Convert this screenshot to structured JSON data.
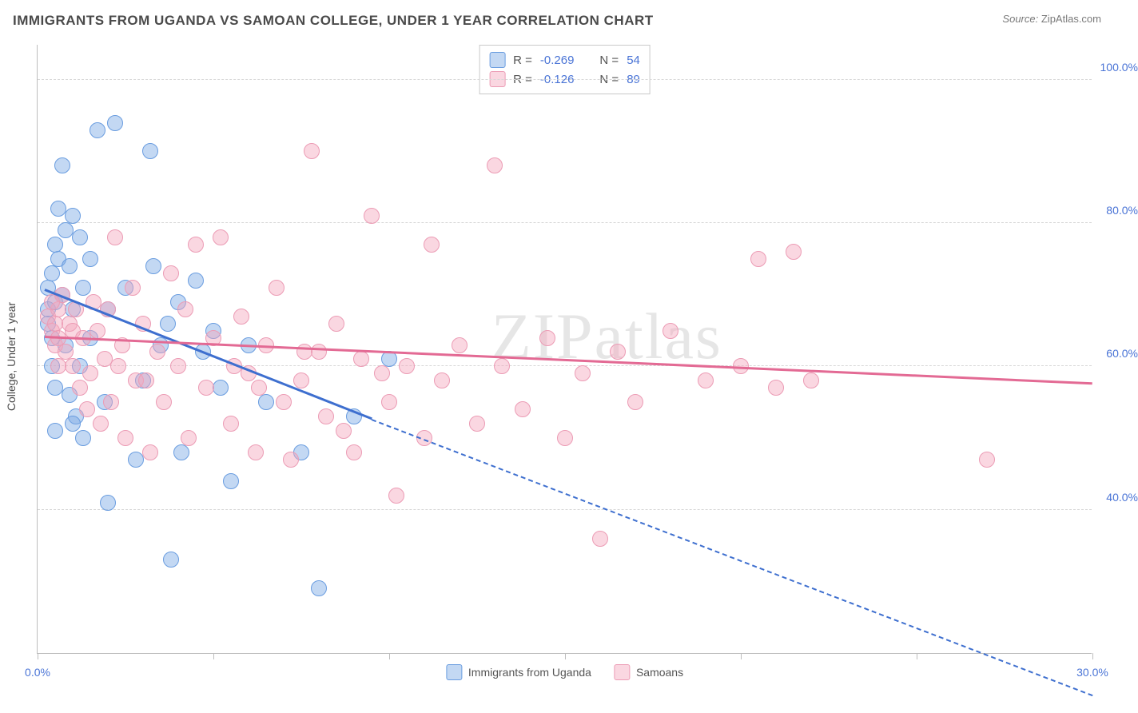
{
  "title": "IMMIGRANTS FROM UGANDA VS SAMOAN COLLEGE, UNDER 1 YEAR CORRELATION CHART",
  "source_label": "Source:",
  "source_value": "ZipAtlas.com",
  "y_axis_label": "College, Under 1 year",
  "watermark": "ZIPatlas",
  "chart": {
    "type": "scatter",
    "xlim": [
      0,
      30
    ],
    "ylim": [
      20,
      105
    ],
    "x_ticks": [
      0,
      5,
      10,
      15,
      20,
      25,
      30
    ],
    "x_tick_labels": [
      "0.0%",
      "",
      "",
      "",
      "",
      "",
      "30.0%"
    ],
    "y_ticks": [
      40,
      60,
      80,
      100
    ],
    "y_tick_labels": [
      "40.0%",
      "60.0%",
      "80.0%",
      "100.0%"
    ],
    "background_color": "#ffffff",
    "grid_color": "#d7d7d7",
    "point_radius": 10,
    "series": [
      {
        "name": "Immigrants from Uganda",
        "fill": "rgba(122,168,228,0.45)",
        "stroke": "#6a9de0",
        "trend_color": "#3e6fcf",
        "R": "-0.269",
        "N": "54",
        "trend": {
          "x1": 0.2,
          "y1": 70.5,
          "x2": 9.5,
          "y2": 52.5,
          "dash_to_x": 30,
          "dash_to_y": 14
        },
        "points": [
          [
            0.3,
            71
          ],
          [
            0.3,
            68
          ],
          [
            0.3,
            66
          ],
          [
            0.4,
            73
          ],
          [
            0.4,
            64
          ],
          [
            0.4,
            60
          ],
          [
            0.5,
            77
          ],
          [
            0.5,
            69
          ],
          [
            0.5,
            57
          ],
          [
            0.6,
            82
          ],
          [
            0.6,
            75
          ],
          [
            0.7,
            88
          ],
          [
            0.7,
            70
          ],
          [
            0.8,
            79
          ],
          [
            0.8,
            63
          ],
          [
            0.9,
            74
          ],
          [
            0.9,
            56
          ],
          [
            1.0,
            81
          ],
          [
            1.0,
            68
          ],
          [
            1.1,
            53
          ],
          [
            1.2,
            78
          ],
          [
            1.2,
            60
          ],
          [
            1.3,
            71
          ],
          [
            1.3,
            50
          ],
          [
            1.5,
            64
          ],
          [
            1.5,
            75
          ],
          [
            1.7,
            93
          ],
          [
            1.9,
            55
          ],
          [
            2.0,
            68
          ],
          [
            2.2,
            94
          ],
          [
            2.5,
            71
          ],
          [
            2.8,
            47
          ],
          [
            3.0,
            58
          ],
          [
            3.2,
            90
          ],
          [
            3.3,
            74
          ],
          [
            3.5,
            63
          ],
          [
            3.7,
            66
          ],
          [
            3.8,
            33
          ],
          [
            4.0,
            69
          ],
          [
            4.1,
            48
          ],
          [
            4.5,
            72
          ],
          [
            4.7,
            62
          ],
          [
            5.0,
            65
          ],
          [
            5.2,
            57
          ],
          [
            5.5,
            44
          ],
          [
            6.0,
            63
          ],
          [
            6.5,
            55
          ],
          [
            7.5,
            48
          ],
          [
            8.0,
            29
          ],
          [
            9.0,
            53
          ],
          [
            10.0,
            61
          ],
          [
            0.5,
            51
          ],
          [
            1.0,
            52
          ],
          [
            2.0,
            41
          ]
        ]
      },
      {
        "name": "Samoans",
        "fill": "rgba(244,166,188,0.45)",
        "stroke": "#ec9cb5",
        "trend_color": "#e36a94",
        "R": "-0.126",
        "N": "89",
        "trend": {
          "x1": 0.2,
          "y1": 64,
          "x2": 30,
          "y2": 57.5
        },
        "points": [
          [
            0.3,
            67
          ],
          [
            0.4,
            65
          ],
          [
            0.5,
            66
          ],
          [
            0.5,
            63
          ],
          [
            0.6,
            68
          ],
          [
            0.6,
            64
          ],
          [
            0.7,
            70
          ],
          [
            0.8,
            62
          ],
          [
            0.9,
            66
          ],
          [
            1.0,
            60
          ],
          [
            1.0,
            65
          ],
          [
            1.2,
            57
          ],
          [
            1.3,
            64
          ],
          [
            1.4,
            54
          ],
          [
            1.5,
            59
          ],
          [
            1.6,
            69
          ],
          [
            1.8,
            52
          ],
          [
            1.9,
            61
          ],
          [
            2.0,
            68
          ],
          [
            2.1,
            55
          ],
          [
            2.2,
            78
          ],
          [
            2.4,
            63
          ],
          [
            2.5,
            50
          ],
          [
            2.7,
            71
          ],
          [
            2.8,
            58
          ],
          [
            3.0,
            66
          ],
          [
            3.2,
            48
          ],
          [
            3.4,
            62
          ],
          [
            3.6,
            55
          ],
          [
            3.8,
            73
          ],
          [
            4.0,
            60
          ],
          [
            4.2,
            68
          ],
          [
            4.5,
            77
          ],
          [
            4.8,
            57
          ],
          [
            5.0,
            64
          ],
          [
            5.2,
            78
          ],
          [
            5.5,
            52
          ],
          [
            5.8,
            67
          ],
          [
            6.0,
            59
          ],
          [
            6.2,
            48
          ],
          [
            6.5,
            63
          ],
          [
            6.8,
            71
          ],
          [
            7.0,
            55
          ],
          [
            7.2,
            47
          ],
          [
            7.5,
            58
          ],
          [
            7.8,
            90
          ],
          [
            8.0,
            62
          ],
          [
            8.2,
            53
          ],
          [
            8.5,
            66
          ],
          [
            9.0,
            48
          ],
          [
            9.2,
            61
          ],
          [
            9.5,
            81
          ],
          [
            10.0,
            55
          ],
          [
            10.2,
            42
          ],
          [
            10.5,
            60
          ],
          [
            11.0,
            50
          ],
          [
            11.2,
            77
          ],
          [
            11.5,
            58
          ],
          [
            12.0,
            63
          ],
          [
            12.5,
            52
          ],
          [
            13.0,
            88
          ],
          [
            13.2,
            60
          ],
          [
            13.8,
            54
          ],
          [
            14.5,
            64
          ],
          [
            15.0,
            50
          ],
          [
            15.5,
            59
          ],
          [
            16.0,
            36
          ],
          [
            16.5,
            62
          ],
          [
            17.0,
            55
          ],
          [
            18.0,
            65
          ],
          [
            19.0,
            58
          ],
          [
            20.0,
            60
          ],
          [
            20.5,
            75
          ],
          [
            21.0,
            57
          ],
          [
            21.5,
            76
          ],
          [
            22.0,
            58
          ],
          [
            27.0,
            47
          ],
          [
            0.4,
            69
          ],
          [
            0.6,
            60
          ],
          [
            1.1,
            68
          ],
          [
            1.7,
            65
          ],
          [
            2.3,
            60
          ],
          [
            3.1,
            58
          ],
          [
            4.3,
            50
          ],
          [
            5.6,
            60
          ],
          [
            6.3,
            57
          ],
          [
            7.6,
            62
          ],
          [
            8.7,
            51
          ],
          [
            9.8,
            59
          ]
        ]
      }
    ]
  },
  "legend": {
    "r_label": "R =",
    "n_label": "N ="
  }
}
